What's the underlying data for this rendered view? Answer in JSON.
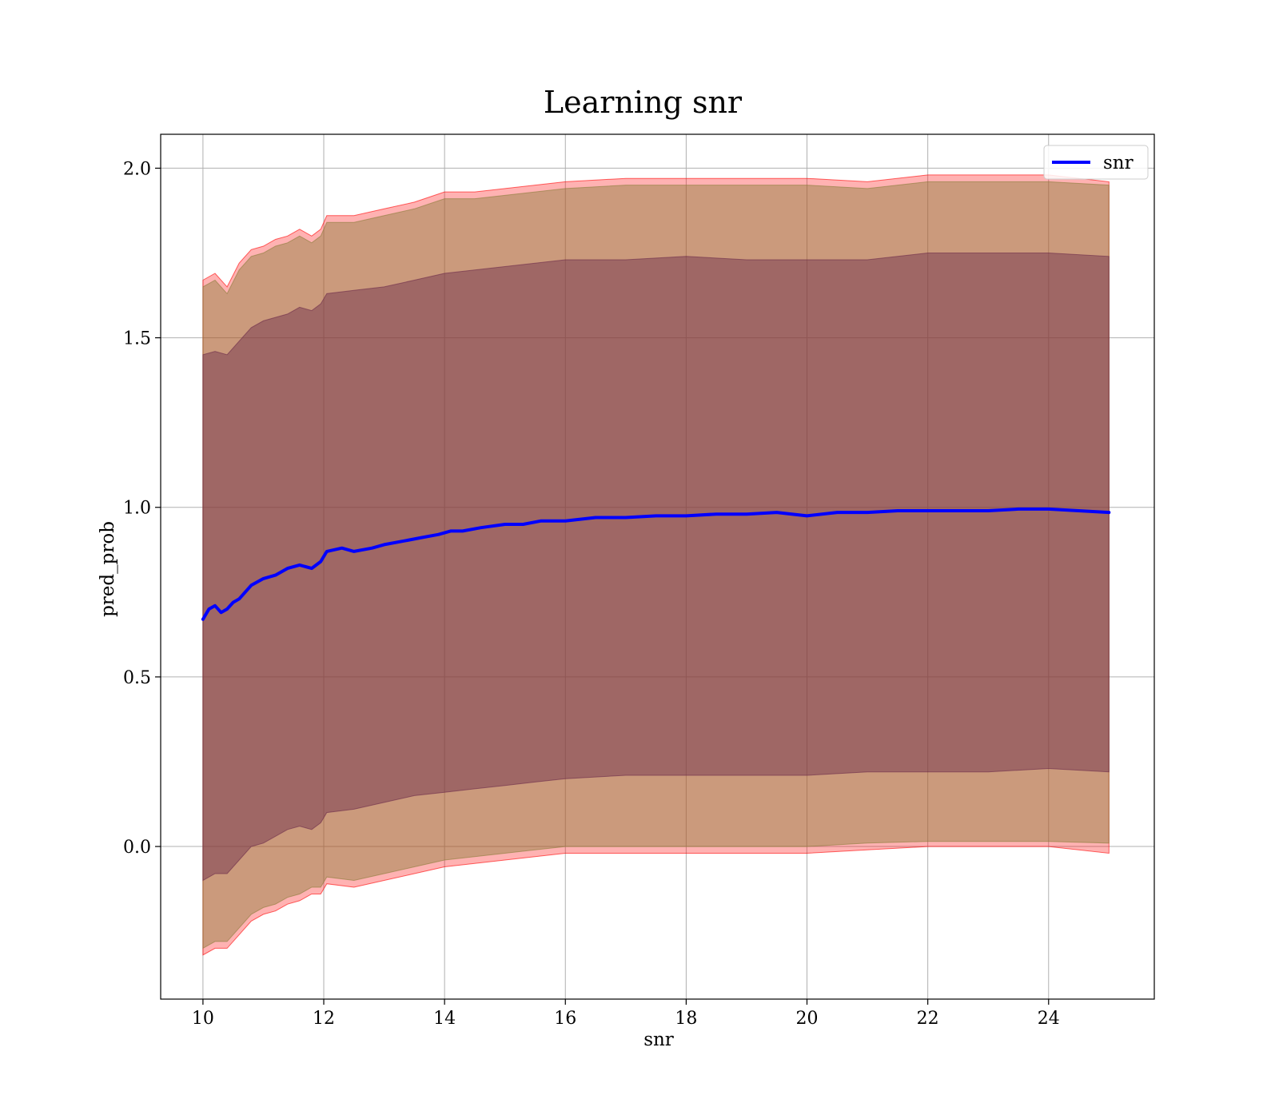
{
  "chart_data": {
    "type": "line",
    "title": "Learning snr",
    "xlabel": "snr",
    "ylabel": "pred_prob",
    "xlim": [
      9.3,
      25.75
    ],
    "ylim": [
      -0.45,
      2.1
    ],
    "x_ticks": [
      10,
      12,
      14,
      16,
      18,
      20,
      22,
      24
    ],
    "y_ticks": [
      0.0,
      0.5,
      1.0,
      1.5,
      2.0
    ],
    "x_tick_labels": [
      "10",
      "12",
      "14",
      "16",
      "18",
      "20",
      "22",
      "24"
    ],
    "y_tick_labels": [
      "0.0",
      "0.5",
      "1.0",
      "1.5",
      "2.0"
    ],
    "grid": true,
    "legend": {
      "position": "top-right",
      "entries": [
        "snr"
      ]
    },
    "colors": {
      "line": "#0000ff",
      "outer_band": "#ff0000",
      "middle_band": "#8b7d3a",
      "inner_band": "#6b2a4a",
      "grid": "#b0b0b0"
    },
    "series": [
      {
        "name": "snr",
        "x": [
          10.0,
          10.1,
          10.2,
          10.3,
          10.4,
          10.5,
          10.6,
          10.8,
          11.0,
          11.2,
          11.4,
          11.6,
          11.8,
          11.95,
          12.05,
          12.3,
          12.5,
          12.8,
          13.0,
          13.3,
          13.6,
          13.9,
          14.1,
          14.3,
          14.6,
          15.0,
          15.3,
          15.6,
          16.0,
          16.5,
          17.0,
          17.5,
          18.0,
          18.5,
          19.0,
          19.5,
          20.0,
          20.5,
          21.0,
          21.5,
          22.0,
          22.5,
          23.0,
          23.5,
          24.0,
          24.5,
          25.0
        ],
        "y": [
          0.67,
          0.7,
          0.71,
          0.69,
          0.7,
          0.72,
          0.73,
          0.77,
          0.79,
          0.8,
          0.82,
          0.83,
          0.82,
          0.84,
          0.87,
          0.88,
          0.87,
          0.88,
          0.89,
          0.9,
          0.91,
          0.92,
          0.93,
          0.93,
          0.94,
          0.95,
          0.95,
          0.96,
          0.96,
          0.97,
          0.97,
          0.975,
          0.975,
          0.98,
          0.98,
          0.985,
          0.975,
          0.985,
          0.985,
          0.99,
          0.99,
          0.99,
          0.99,
          0.995,
          0.995,
          0.99,
          0.985
        ]
      }
    ],
    "bands": [
      {
        "role": "outer",
        "x": [
          10.0,
          10.2,
          10.4,
          10.6,
          10.8,
          11.0,
          11.2,
          11.4,
          11.6,
          11.8,
          11.95,
          12.05,
          12.5,
          13.0,
          13.5,
          14.0,
          14.5,
          15.0,
          15.5,
          16.0,
          17.0,
          18.0,
          19.0,
          20.0,
          21.0,
          22.0,
          23.0,
          24.0,
          25.0
        ],
        "upper": [
          1.67,
          1.69,
          1.65,
          1.72,
          1.76,
          1.77,
          1.79,
          1.8,
          1.82,
          1.8,
          1.82,
          1.86,
          1.86,
          1.88,
          1.9,
          1.93,
          1.93,
          1.94,
          1.95,
          1.96,
          1.97,
          1.97,
          1.97,
          1.97,
          1.96,
          1.98,
          1.98,
          1.98,
          1.96
        ],
        "lower": [
          -0.32,
          -0.3,
          -0.3,
          -0.26,
          -0.22,
          -0.2,
          -0.19,
          -0.17,
          -0.16,
          -0.14,
          -0.14,
          -0.11,
          -0.12,
          -0.1,
          -0.08,
          -0.06,
          -0.05,
          -0.04,
          -0.03,
          -0.02,
          -0.02,
          -0.02,
          -0.02,
          -0.02,
          -0.01,
          0.0,
          0.0,
          0.0,
          -0.02
        ]
      },
      {
        "role": "middle",
        "x": [
          10.0,
          10.2,
          10.4,
          10.6,
          10.8,
          11.0,
          11.2,
          11.4,
          11.6,
          11.8,
          11.95,
          12.05,
          12.5,
          13.0,
          13.5,
          14.0,
          14.5,
          15.0,
          15.5,
          16.0,
          17.0,
          18.0,
          19.0,
          20.0,
          21.0,
          22.0,
          23.0,
          24.0,
          25.0
        ],
        "upper": [
          1.65,
          1.67,
          1.63,
          1.7,
          1.74,
          1.75,
          1.77,
          1.78,
          1.8,
          1.78,
          1.8,
          1.84,
          1.84,
          1.86,
          1.88,
          1.91,
          1.91,
          1.92,
          1.93,
          1.94,
          1.95,
          1.95,
          1.95,
          1.95,
          1.94,
          1.96,
          1.96,
          1.96,
          1.95
        ],
        "lower": [
          -0.3,
          -0.28,
          -0.28,
          -0.24,
          -0.2,
          -0.18,
          -0.17,
          -0.15,
          -0.14,
          -0.12,
          -0.12,
          -0.09,
          -0.1,
          -0.08,
          -0.06,
          -0.04,
          -0.03,
          -0.02,
          -0.01,
          0.0,
          0.0,
          0.0,
          0.0,
          0.0,
          0.01,
          0.015,
          0.015,
          0.015,
          0.01
        ]
      },
      {
        "role": "inner",
        "x": [
          10.0,
          10.2,
          10.4,
          10.6,
          10.8,
          11.0,
          11.2,
          11.4,
          11.6,
          11.8,
          11.95,
          12.05,
          12.5,
          13.0,
          13.5,
          14.0,
          14.5,
          15.0,
          15.5,
          16.0,
          17.0,
          18.0,
          19.0,
          20.0,
          21.0,
          22.0,
          23.0,
          24.0,
          25.0
        ],
        "upper": [
          1.45,
          1.46,
          1.45,
          1.49,
          1.53,
          1.55,
          1.56,
          1.57,
          1.59,
          1.58,
          1.6,
          1.63,
          1.64,
          1.65,
          1.67,
          1.69,
          1.7,
          1.71,
          1.72,
          1.73,
          1.73,
          1.74,
          1.73,
          1.73,
          1.73,
          1.75,
          1.75,
          1.75,
          1.74
        ],
        "lower": [
          -0.1,
          -0.08,
          -0.08,
          -0.04,
          0.0,
          0.01,
          0.03,
          0.05,
          0.06,
          0.05,
          0.07,
          0.1,
          0.11,
          0.13,
          0.15,
          0.16,
          0.17,
          0.18,
          0.19,
          0.2,
          0.21,
          0.21,
          0.21,
          0.21,
          0.22,
          0.22,
          0.22,
          0.23,
          0.22
        ]
      }
    ]
  }
}
